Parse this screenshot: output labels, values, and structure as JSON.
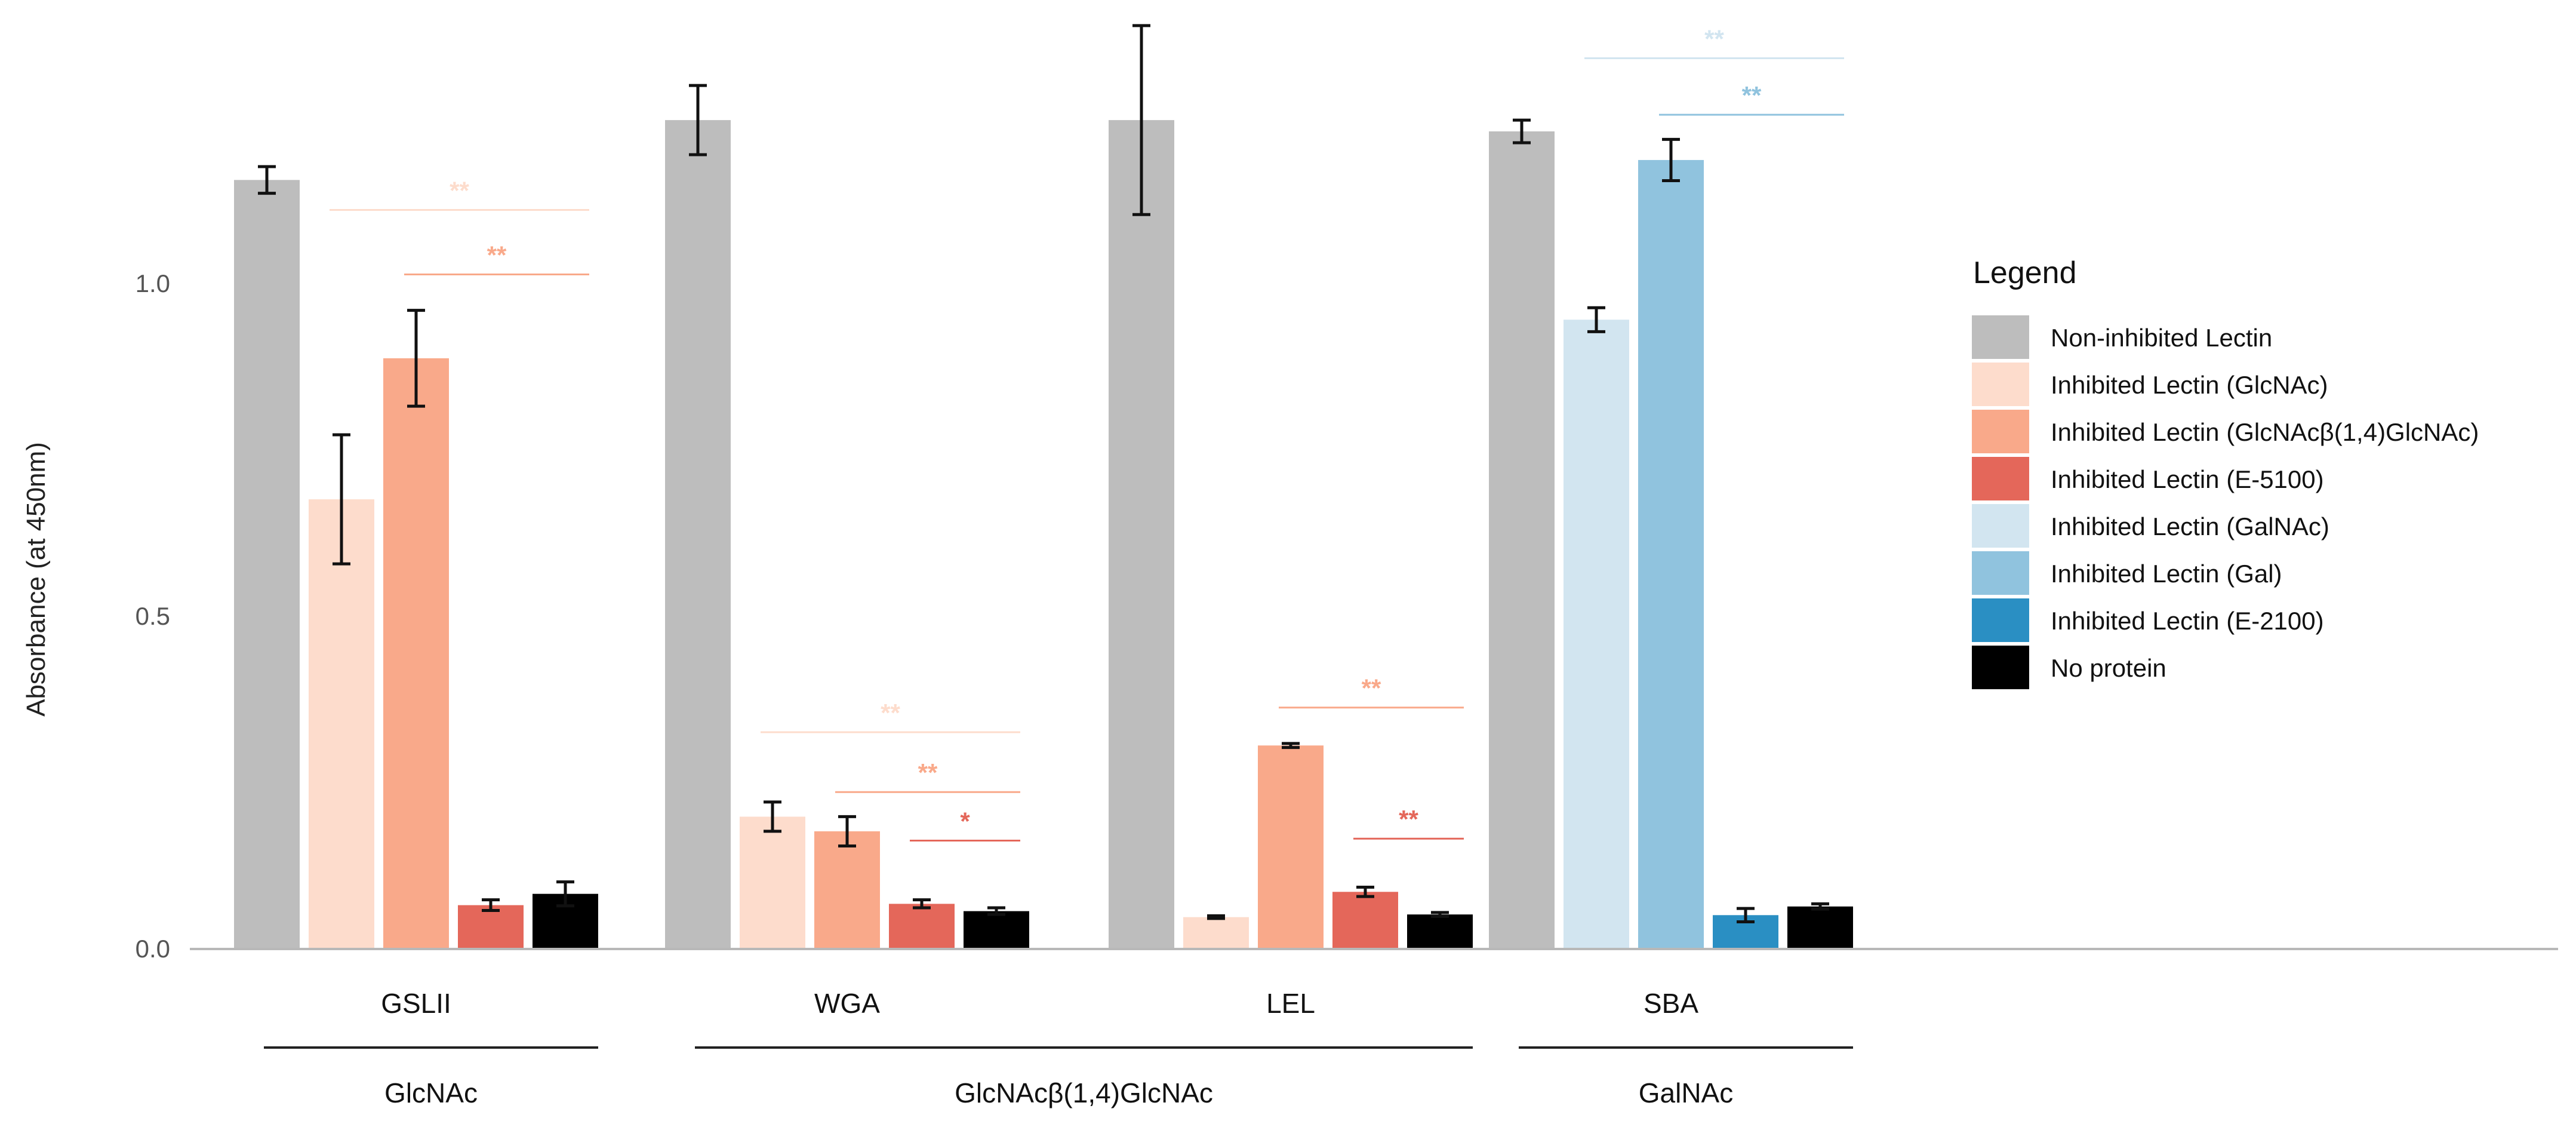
{
  "chart_data": {
    "type": "bar",
    "ylabel": "Absorbance (at 450nm)",
    "ylim": [
      0,
      1.38
    ],
    "yticks": [
      0.0,
      0.5,
      1.0
    ],
    "ytick_labels": [
      "0.0",
      "0.5",
      "1.0"
    ],
    "grid": false,
    "legend_position": "right",
    "categories": [
      "GSLII",
      "WGA",
      "LEL",
      "SBA"
    ],
    "group_labels": [
      {
        "label": "GlcNAc",
        "from": 0,
        "to": 0
      },
      {
        "label": "GlcNAcβ(1,4)GlcNAc",
        "from": 1,
        "to": 2
      },
      {
        "label": "GalNAc",
        "from": 3,
        "to": 3
      }
    ],
    "legend": {
      "title": "Legend",
      "entries": [
        {
          "label": "Non-inhibited Lectin",
          "color": "#bdbdbd"
        },
        {
          "label": "Inhibited Lectin (GlcNAc)",
          "color": "#fddccc"
        },
        {
          "label": "Inhibited Lectin (GlcNAcβ(1,4)GlcNAc)",
          "color": "#f9a98a"
        },
        {
          "label": "Inhibited Lectin (E-5100)",
          "color": "#e4675a"
        },
        {
          "label": "Inhibited Lectin (GalNAc)",
          "color": "#d2e5f0"
        },
        {
          "label": "Inhibited Lectin (Gal)",
          "color": "#90c3de"
        },
        {
          "label": "Inhibited Lectin (E-2100)",
          "color": "#2a8fc3"
        },
        {
          "label": "No protein",
          "color": "#000000"
        }
      ]
    },
    "groups": [
      {
        "category": "GSLII",
        "bars": [
          {
            "series": "Non-inhibited Lectin",
            "value": 1.155,
            "err": 0.02
          },
          {
            "series": "Inhibited Lectin (GlcNAc)",
            "value": 0.675,
            "err": 0.097
          },
          {
            "series": "Inhibited Lectin (GlcNAcβ(1,4)GlcNAc)",
            "value": 0.887,
            "err": 0.072
          },
          {
            "series": "Inhibited Lectin (E-5100)",
            "value": 0.065,
            "err": 0.008
          },
          {
            "series": "No protein",
            "value": 0.082,
            "err": 0.018
          }
        ]
      },
      {
        "category": "WGA",
        "bars": [
          {
            "series": "Non-inhibited Lectin",
            "value": 1.245,
            "err": 0.052
          },
          {
            "series": "Inhibited Lectin (GlcNAc)",
            "value": 0.198,
            "err": 0.022
          },
          {
            "series": "Inhibited Lectin (GlcNAcβ(1,4)GlcNAc)",
            "value": 0.176,
            "err": 0.022
          },
          {
            "series": "Inhibited Lectin (E-5100)",
            "value": 0.067,
            "err": 0.006
          },
          {
            "series": "No protein",
            "value": 0.056,
            "err": 0.005
          }
        ]
      },
      {
        "category": "LEL",
        "bars": [
          {
            "series": "Non-inhibited Lectin",
            "value": 1.245,
            "err": 0.142
          },
          {
            "series": "Inhibited Lectin (GlcNAc)",
            "value": 0.047,
            "err": 0.002
          },
          {
            "series": "Inhibited Lectin (GlcNAcβ(1,4)GlcNAc)",
            "value": 0.305,
            "err": 0.003
          },
          {
            "series": "Inhibited Lectin (E-5100)",
            "value": 0.085,
            "err": 0.007
          },
          {
            "series": "No protein",
            "value": 0.051,
            "err": 0.003
          }
        ]
      },
      {
        "category": "SBA",
        "bars": [
          {
            "series": "Non-inhibited Lectin",
            "value": 1.228,
            "err": 0.017
          },
          {
            "series": "Inhibited Lectin (GalNAc)",
            "value": 0.945,
            "err": 0.018
          },
          {
            "series": "Inhibited Lectin (Gal)",
            "value": 1.185,
            "err": 0.031
          },
          {
            "series": "Inhibited Lectin (E-2100)",
            "value": 0.05,
            "err": 0.01
          },
          {
            "series": "No protein",
            "value": 0.063,
            "err": 0.004
          }
        ]
      }
    ],
    "significance": [
      {
        "group": 0,
        "from_bar": 1,
        "to_bar": 4,
        "y": 1.11,
        "label": "**",
        "color": "#fddccc"
      },
      {
        "group": 0,
        "from_bar": 2,
        "to_bar": 4,
        "y": 1.013,
        "label": "**",
        "color": "#f9a98a"
      },
      {
        "group": 1,
        "from_bar": 1,
        "to_bar": 4,
        "y": 0.325,
        "label": "**",
        "color": "#fddccc"
      },
      {
        "group": 1,
        "from_bar": 2,
        "to_bar": 4,
        "y": 0.235,
        "label": "**",
        "color": "#f9a98a"
      },
      {
        "group": 1,
        "from_bar": 3,
        "to_bar": 4,
        "y": 0.162,
        "label": "*",
        "color": "#e4675a"
      },
      {
        "group": 2,
        "from_bar": 2,
        "to_bar": 4,
        "y": 0.362,
        "label": "**",
        "color": "#f9a98a"
      },
      {
        "group": 2,
        "from_bar": 3,
        "to_bar": 4,
        "y": 0.165,
        "label": "**",
        "color": "#e4675a"
      },
      {
        "group": 3,
        "from_bar": 1,
        "to_bar": 4,
        "y": 1.338,
        "label": "**",
        "color": "#d2e5f0"
      },
      {
        "group": 3,
        "from_bar": 2,
        "to_bar": 4,
        "y": 1.253,
        "label": "**",
        "color": "#90c3de"
      }
    ]
  }
}
